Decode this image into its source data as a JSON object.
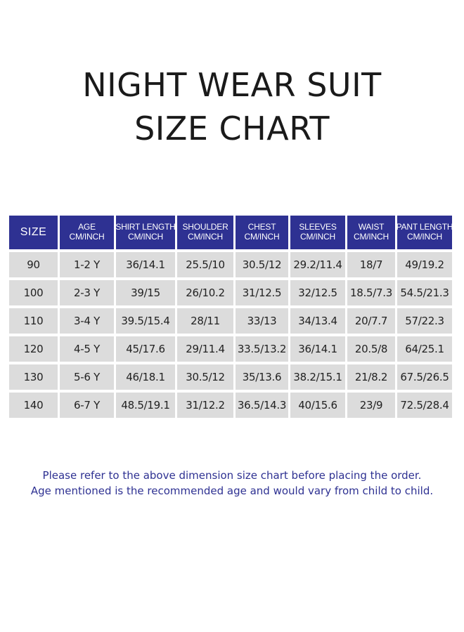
{
  "title": {
    "line1": "NIGHT WEAR SUIT",
    "line2": "SIZE CHART"
  },
  "colors": {
    "header_bg": "#2e3192",
    "cell_bg": "#dcdcdc",
    "note_text": "#2e3192"
  },
  "table": {
    "headers": [
      {
        "line1": "SIZE",
        "line2": ""
      },
      {
        "line1": "AGE",
        "line2": "CM/INCH"
      },
      {
        "line1": "SHIRT LENGTH",
        "line2": "CM/INCH"
      },
      {
        "line1": "SHOULDER",
        "line2": "CM/INCH"
      },
      {
        "line1": "CHEST",
        "line2": "CM/INCH"
      },
      {
        "line1": "SLEEVES",
        "line2": "CM/INCH"
      },
      {
        "line1": "WAIST",
        "line2": "CM/INCH"
      },
      {
        "line1": "PANT LENGTH",
        "line2": "CM/INCH"
      }
    ],
    "rows": [
      [
        "90",
        "1-2 Y",
        "36/14.1",
        "25.5/10",
        "30.5/12",
        "29.2/11.4",
        "18/7",
        "49/19.2"
      ],
      [
        "100",
        "2-3 Y",
        "39/15",
        "26/10.2",
        "31/12.5",
        "32/12.5",
        "18.5/7.3",
        "54.5/21.3"
      ],
      [
        "110",
        "3-4 Y",
        "39.5/15.4",
        "28/11",
        "33/13",
        "34/13.4",
        "20/7.7",
        "57/22.3"
      ],
      [
        "120",
        "4-5 Y",
        "45/17.6",
        "29/11.4",
        "33.5/13.2",
        "36/14.1",
        "20.5/8",
        "64/25.1"
      ],
      [
        "130",
        "5-6 Y",
        "46/18.1",
        "30.5/12",
        "35/13.6",
        "38.2/15.1",
        "21/8.2",
        "67.5/26.5"
      ],
      [
        "140",
        "6-7 Y",
        "48.5/19.1",
        "31/12.2",
        "36.5/14.3",
        "40/15.6",
        "23/9",
        "72.5/28.4"
      ]
    ]
  },
  "notes": {
    "line1": "Please refer to the above dimension size chart before placing the order.",
    "line2": "Age mentioned is the recommended age and would vary from child to child."
  }
}
